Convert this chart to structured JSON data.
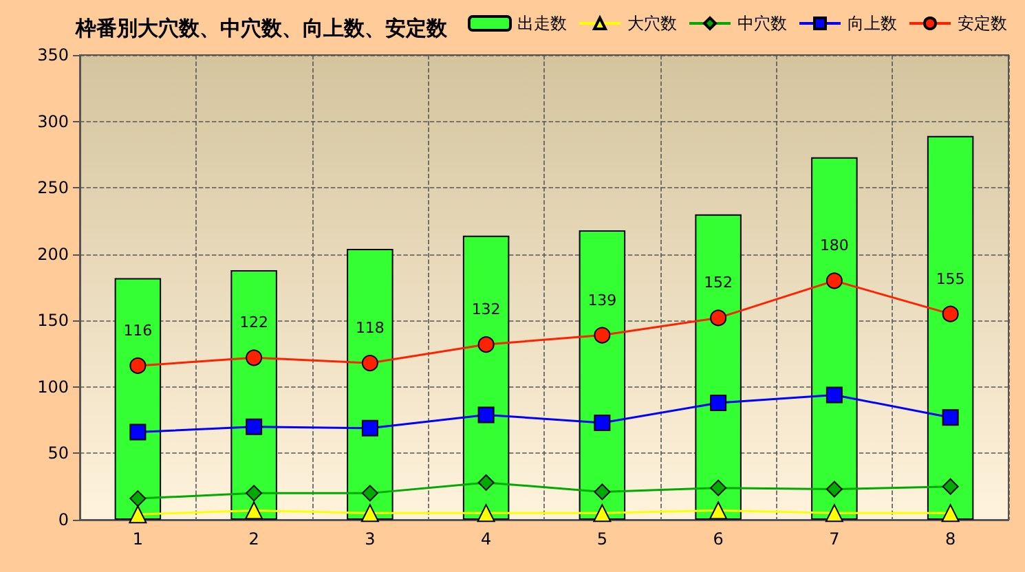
{
  "chart_data": {
    "type": "bar",
    "title": "枠番別大穴数、中穴数、向上数、安定数",
    "categories": [
      "1",
      "2",
      "3",
      "4",
      "5",
      "6",
      "7",
      "8"
    ],
    "series": [
      {
        "name": "出走数",
        "color": "#33ff33",
        "values": [
          182,
          188,
          204,
          214,
          218,
          230,
          273,
          289
        ]
      },
      {
        "name": "大穴数",
        "type": "line",
        "marker": "triangle",
        "color": "#ffff00",
        "values": [
          4,
          7,
          5,
          5,
          5,
          7,
          5,
          5
        ]
      },
      {
        "name": "中穴数",
        "type": "line",
        "marker": "diamond",
        "color": "#00aa00",
        "values": [
          16,
          20,
          20,
          28,
          21,
          24,
          23,
          25
        ]
      },
      {
        "name": "向上数",
        "type": "line",
        "marker": "square",
        "color": "#0000ff",
        "values": [
          66,
          70,
          69,
          79,
          73,
          88,
          94,
          77
        ]
      },
      {
        "name": "安定数",
        "type": "line",
        "marker": "circle",
        "color": "#ff2200",
        "values": [
          116,
          122,
          118,
          132,
          139,
          152,
          180,
          155
        ],
        "value_labels": [
          "116",
          "122",
          "118",
          "132",
          "139",
          "152",
          "180",
          "155"
        ]
      }
    ],
    "ylim": [
      0,
      350
    ],
    "yticks": [
      0,
      50,
      100,
      150,
      200,
      250,
      300,
      350
    ],
    "grid": true,
    "legend": "top right"
  }
}
